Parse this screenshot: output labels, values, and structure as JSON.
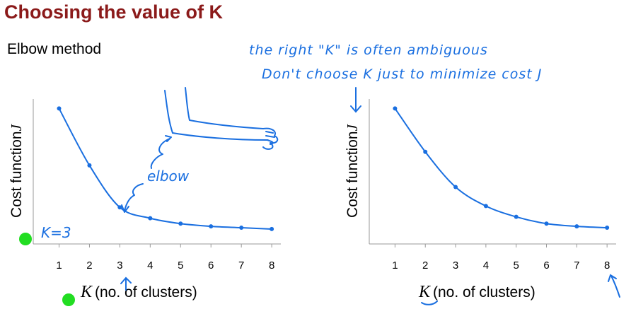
{
  "slide": {
    "title": "Choosing the value of K",
    "subtitle": "Elbow method"
  },
  "annotations": {
    "note_line1": "the right \"K\" is often ambiguous",
    "note_line2": "Don't choose K just to minimize cost J",
    "elbow": "elbow",
    "k_eq_3": "K=3",
    "ink_color": "#1a6fe0",
    "dot_color": "#22dd22"
  },
  "chart_data": [
    {
      "type": "line",
      "x": [
        1,
        2,
        3,
        4,
        5,
        6,
        7,
        8
      ],
      "y": [
        100,
        58,
        27,
        19,
        15,
        13,
        12,
        11
      ],
      "x_ticks": [
        "1",
        "2",
        "3",
        "4",
        "5",
        "6",
        "7",
        "8"
      ],
      "ylabel": "Cost function",
      "ylabel_var": "J",
      "xlabel_var": "K",
      "xlabel": "(no. of clusters)",
      "ylim": [
        0,
        107
      ],
      "xlim": [
        0.15,
        8.3
      ],
      "grid": false,
      "color": "#1a6fe0"
    },
    {
      "type": "line",
      "x": [
        1,
        2,
        3,
        4,
        5,
        6,
        7,
        8
      ],
      "y": [
        100,
        68,
        42,
        28,
        20,
        15,
        13,
        12
      ],
      "x_ticks": [
        "1",
        "2",
        "3",
        "4",
        "5",
        "6",
        "7",
        "8"
      ],
      "ylabel": "Cost function",
      "ylabel_var": "J",
      "xlabel_var": "K",
      "xlabel": "(no. of clusters)",
      "ylim": [
        0,
        107
      ],
      "xlim": [
        0.15,
        8.3
      ],
      "grid": false,
      "color": "#1a6fe0"
    }
  ]
}
